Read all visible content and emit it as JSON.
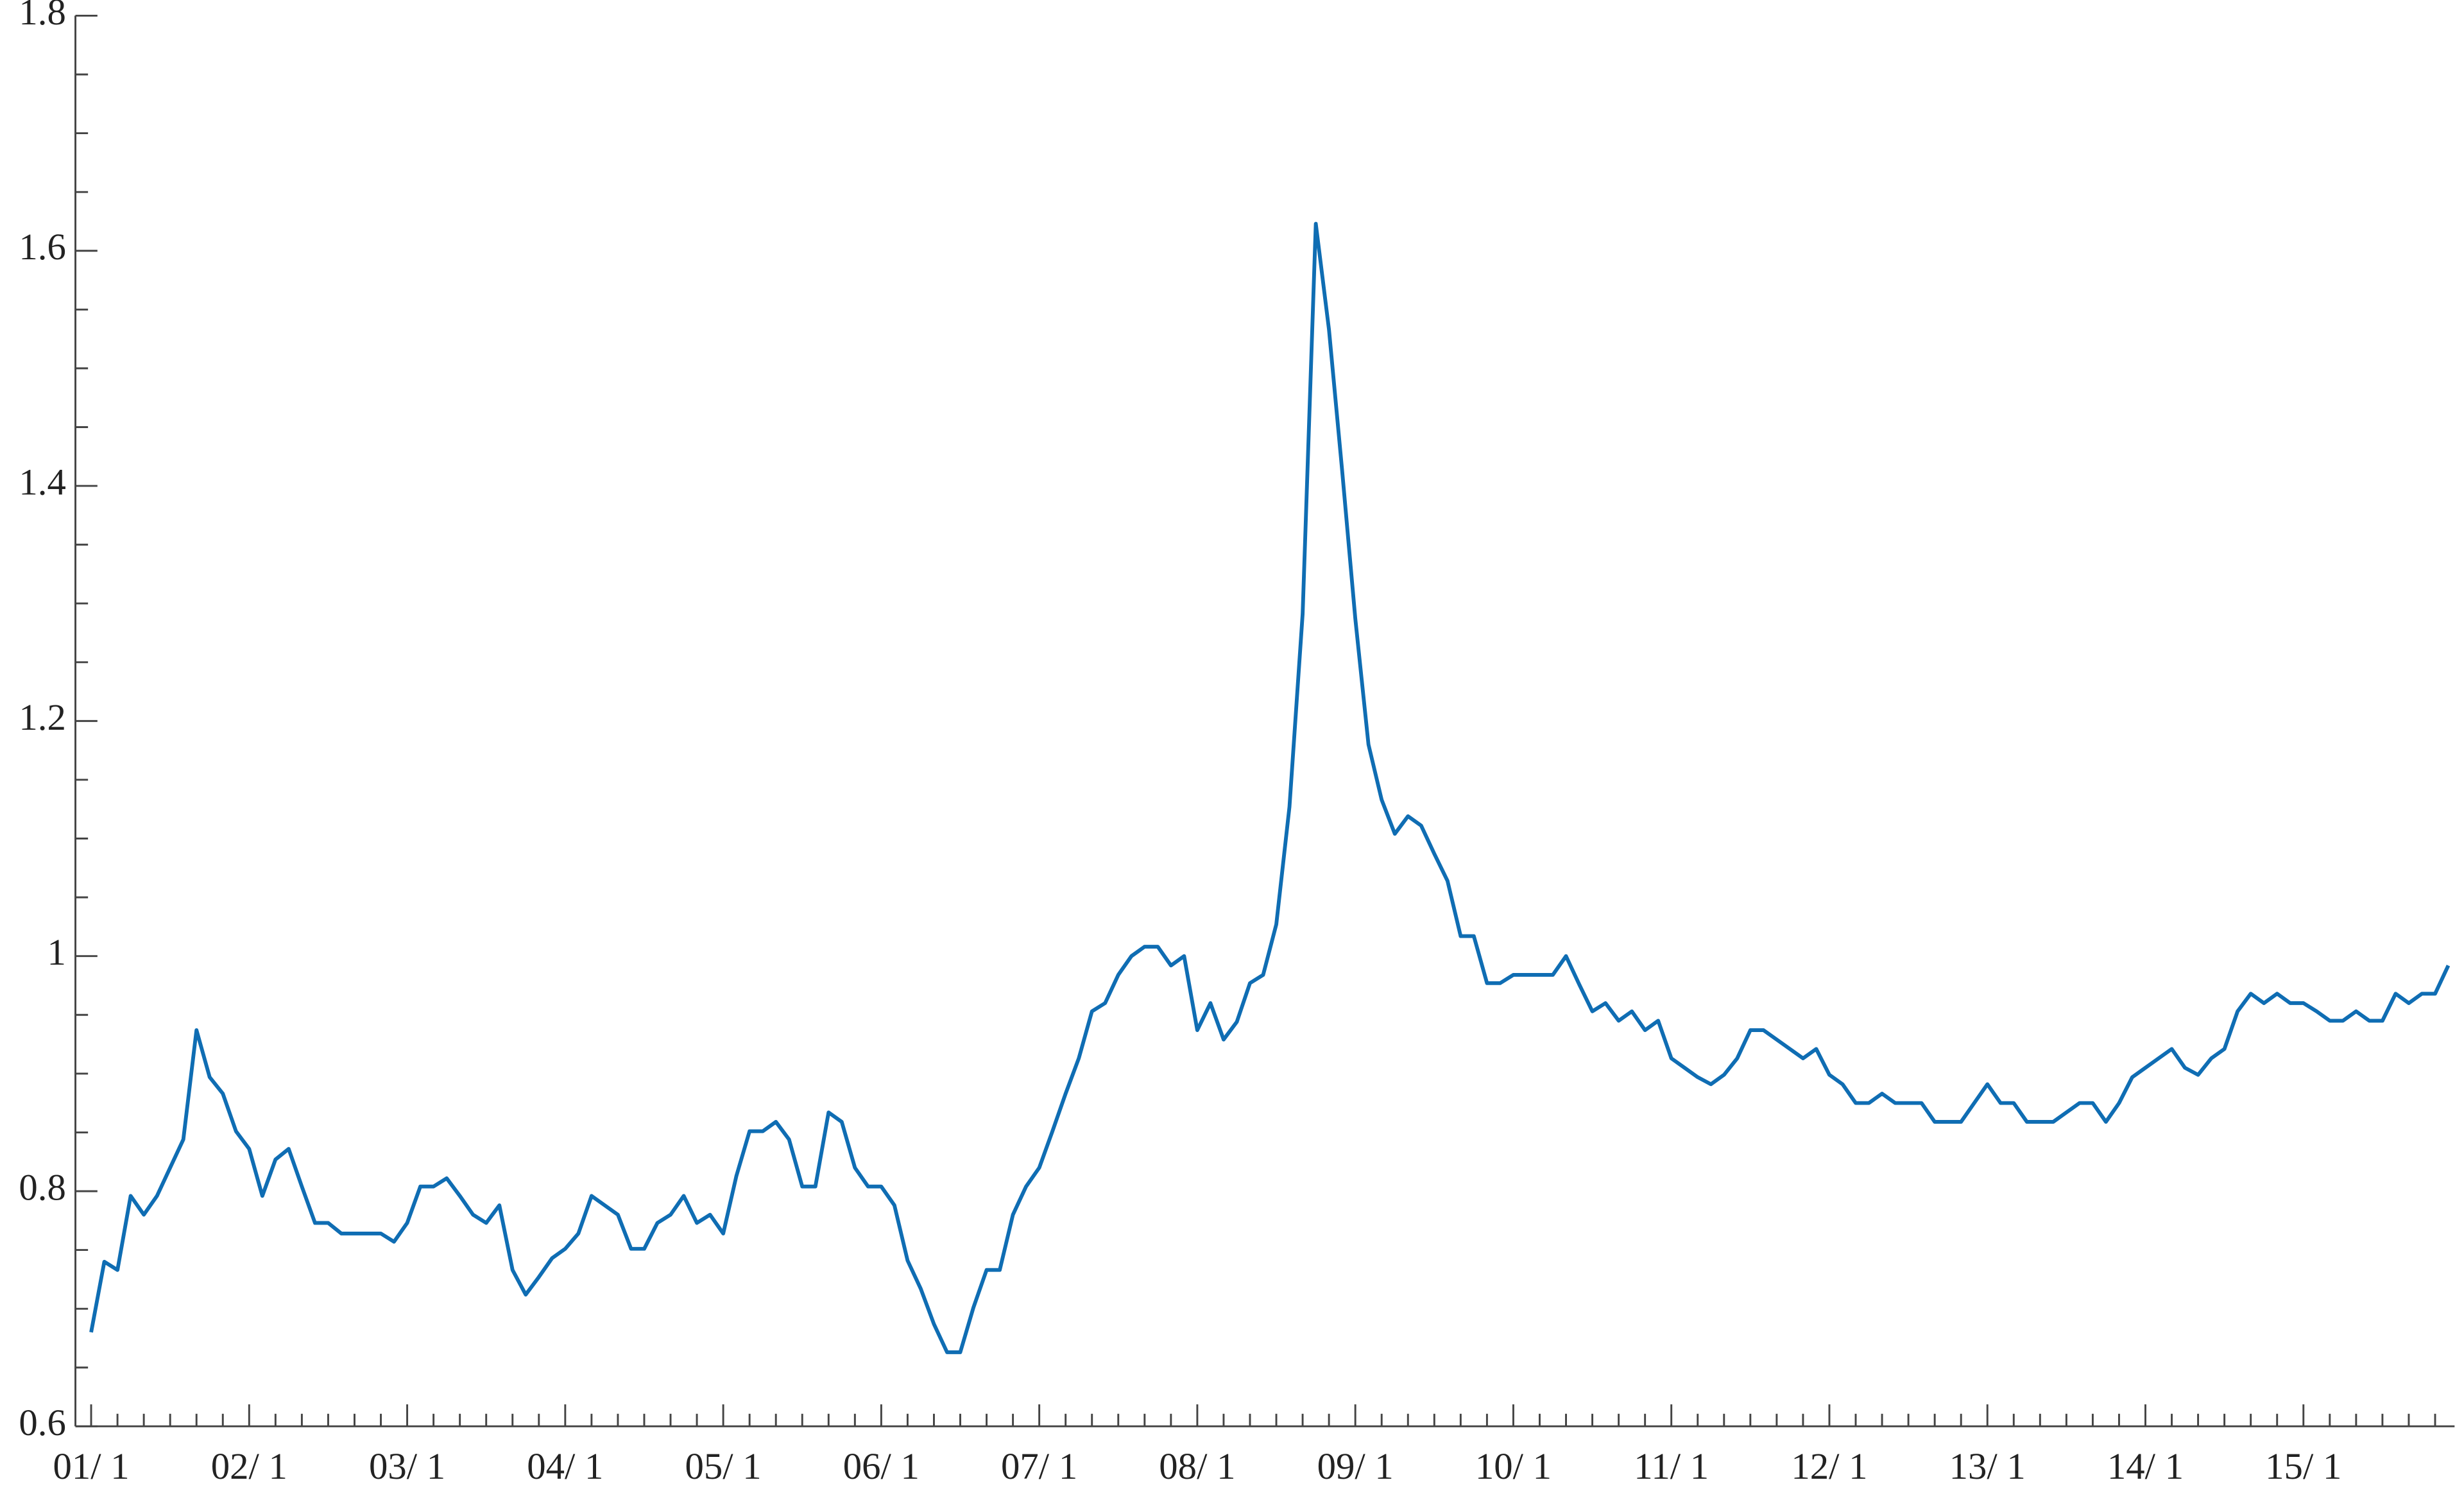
{
  "chart_data": {
    "type": "line",
    "categories": [
      "01/ 1",
      null,
      null,
      null,
      null,
      null,
      null,
      null,
      null,
      null,
      null,
      null,
      "02/ 1",
      null,
      null,
      null,
      null,
      null,
      null,
      null,
      null,
      null,
      null,
      null,
      "03/ 1",
      null,
      null,
      null,
      null,
      null,
      null,
      null,
      null,
      null,
      null,
      null,
      "04/ 1",
      null,
      null,
      null,
      null,
      null,
      null,
      null,
      null,
      null,
      null,
      null,
      "05/ 1",
      null,
      null,
      null,
      null,
      null,
      null,
      null,
      null,
      null,
      null,
      null,
      "06/ 1",
      null,
      null,
      null,
      null,
      null,
      null,
      null,
      null,
      null,
      null,
      null,
      "07/ 1",
      null,
      null,
      null,
      null,
      null,
      null,
      null,
      null,
      null,
      null,
      null,
      "08/ 1",
      null,
      null,
      null,
      null,
      null,
      null,
      null,
      null,
      null,
      null,
      null,
      "09/ 1",
      null,
      null,
      null,
      null,
      null,
      null,
      null,
      null,
      null,
      null,
      null,
      "10/ 1",
      null,
      null,
      null,
      null,
      null,
      null,
      null,
      null,
      null,
      null,
      null,
      "11/ 1",
      null,
      null,
      null,
      null,
      null,
      null,
      null,
      null,
      null,
      null,
      null,
      "12/ 1",
      null,
      null,
      null,
      null,
      null,
      null,
      null,
      null,
      null,
      null,
      null,
      "13/ 1",
      null,
      null,
      null,
      null,
      null,
      null,
      null,
      null,
      null,
      null,
      null,
      "14/ 1",
      null,
      null,
      null,
      null,
      null,
      null,
      null,
      null,
      null,
      null,
      null,
      "15/ 1",
      null,
      null,
      null,
      null,
      null,
      null,
      null,
      null,
      null,
      null,
      null
    ],
    "series": [
      {
        "color": "#0f6db3",
        "values": [
          0.68,
          0.74,
          0.733,
          0.796,
          0.78,
          0.796,
          0.82,
          0.844,
          0.937,
          0.897,
          0.883,
          0.851,
          0.836,
          0.796,
          0.827,
          0.836,
          0.804,
          0.773,
          0.773,
          0.764,
          0.764,
          0.764,
          0.764,
          0.757,
          0.773,
          0.804,
          0.804,
          0.811,
          0.796,
          0.78,
          0.773,
          0.788,
          0.733,
          0.712,
          0.727,
          0.743,
          0.751,
          0.764,
          0.796,
          0.788,
          0.78,
          0.751,
          0.751,
          0.773,
          0.78,
          0.796,
          0.773,
          0.78,
          0.764,
          0.813,
          0.851,
          0.851,
          0.859,
          0.844,
          0.804,
          0.804,
          0.867,
          0.859,
          0.82,
          0.804,
          0.804,
          0.788,
          0.741,
          0.717,
          0.687,
          0.663,
          0.663,
          0.701,
          0.733,
          0.733,
          0.78,
          0.804,
          0.82,
          0.851,
          0.883,
          0.913,
          0.953,
          0.96,
          0.984,
          1.0,
          1.008,
          1.008,
          0.992,
          1.0,
          0.937,
          0.96,
          0.929,
          0.944,
          0.977,
          0.984,
          1.027,
          1.127,
          1.291,
          1.623,
          1.533,
          1.413,
          1.287,
          1.18,
          1.133,
          1.104,
          1.119,
          1.111,
          1.087,
          1.064,
          1.017,
          1.017,
          0.977,
          0.977,
          0.984,
          0.984,
          0.984,
          0.984,
          1.0,
          0.976,
          0.953,
          0.96,
          0.945,
          0.953,
          0.937,
          0.945,
          0.913,
          0.905,
          0.897,
          0.891,
          0.899,
          0.913,
          0.937,
          0.937,
          0.929,
          0.921,
          0.913,
          0.921,
          0.899,
          0.891,
          0.875,
          0.875,
          0.883,
          0.875,
          0.875,
          0.875,
          0.859,
          0.859,
          0.859,
          0.875,
          0.891,
          0.875,
          0.875,
          0.859,
          0.859,
          0.859,
          0.867,
          0.875,
          0.875,
          0.859,
          0.875,
          0.897,
          0.905,
          0.913,
          0.921,
          0.905,
          0.899,
          0.913,
          0.921,
          0.953,
          0.968,
          0.96,
          0.968,
          0.96,
          0.96,
          0.953,
          0.945,
          0.945,
          0.953,
          0.945,
          0.945,
          0.968,
          0.96,
          0.968,
          0.968,
          0.992
        ]
      }
    ],
    "ylim": [
      0.6,
      1.8
    ],
    "yticks": [
      0.6,
      0.8,
      1,
      1.2,
      1.4,
      1.6,
      1.8
    ],
    "yminorticks": [
      0.65,
      0.7,
      0.75,
      0.85,
      0.9,
      0.95,
      1.05,
      1.1,
      1.15,
      1.25,
      1.3,
      1.35,
      1.45,
      1.5,
      1.55,
      1.65,
      1.7,
      1.75
    ]
  }
}
